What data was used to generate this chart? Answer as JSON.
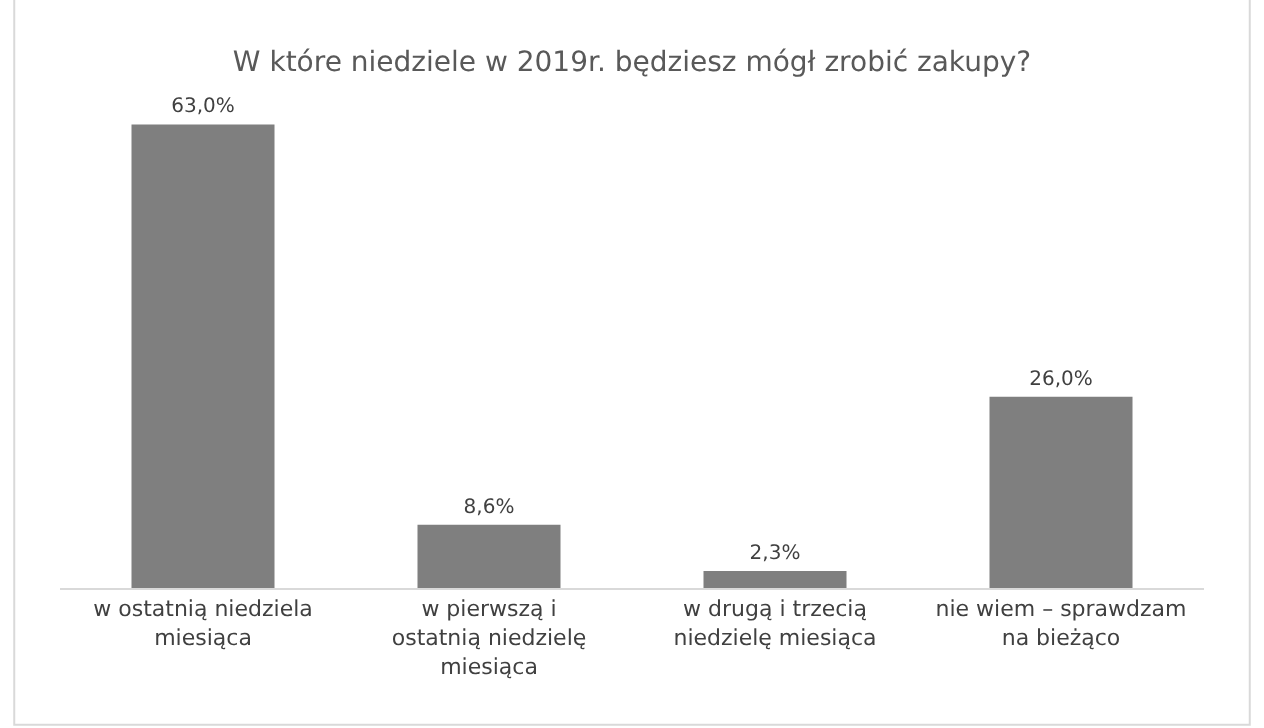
{
  "chart_data": {
    "type": "bar",
    "title": "W które niedziele w 2019r. będziesz mógł zrobić zakupy?",
    "categories": [
      "w ostatnią niedziela miesiąca",
      "w pierwszą i ostatnią niedzielę miesiąca",
      "w drugą i trzecią niedzielę miesiąca",
      "nie wiem – sprawdzam na bieżąco"
    ],
    "values": [
      63.0,
      8.6,
      2.3,
      26.0
    ],
    "value_labels": [
      "63,0%",
      "8,6%",
      "2,3%",
      "26,0%"
    ],
    "color": "#7f7f7f",
    "legend": false
  }
}
